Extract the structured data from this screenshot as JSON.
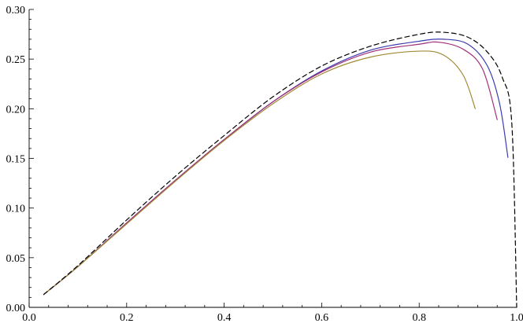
{
  "chart_data": {
    "type": "line",
    "title": "",
    "xlabel": "",
    "ylabel": "",
    "xlim": [
      0,
      1.0
    ],
    "ylim": [
      0,
      0.3
    ],
    "grid": false,
    "x_ticks": [
      0.0,
      0.2,
      0.4,
      0.6,
      0.8,
      1.0
    ],
    "x_tick_labels": [
      "0.0",
      "0.2",
      "0.4",
      "0.6",
      "0.8",
      "1.0"
    ],
    "y_ticks": [
      0.0,
      0.05,
      0.1,
      0.15,
      0.2,
      0.25,
      0.3
    ],
    "y_tick_labels": [
      "0.00",
      "0.05",
      "0.10",
      "0.15",
      "0.20",
      "0.25",
      "0.30"
    ],
    "series": [
      {
        "color": "#000000",
        "dash": "6,4",
        "points": [
          [
            0.03,
            0.013
          ],
          [
            0.1,
            0.042
          ],
          [
            0.2,
            0.088
          ],
          [
            0.3,
            0.132
          ],
          [
            0.4,
            0.173
          ],
          [
            0.5,
            0.212
          ],
          [
            0.6,
            0.243
          ],
          [
            0.7,
            0.263
          ],
          [
            0.8,
            0.275
          ],
          [
            0.85,
            0.277
          ],
          [
            0.9,
            0.272
          ],
          [
            0.94,
            0.257
          ],
          [
            0.97,
            0.232
          ],
          [
            0.99,
            0.185
          ],
          [
            1.0,
            0.0
          ]
        ]
      },
      {
        "color": "#3b3bb0",
        "dash": "",
        "points": [
          [
            0.03,
            0.013
          ],
          [
            0.1,
            0.041
          ],
          [
            0.2,
            0.085
          ],
          [
            0.3,
            0.128
          ],
          [
            0.4,
            0.169
          ],
          [
            0.5,
            0.207
          ],
          [
            0.6,
            0.238
          ],
          [
            0.7,
            0.259
          ],
          [
            0.8,
            0.268
          ],
          [
            0.85,
            0.27
          ],
          [
            0.9,
            0.265
          ],
          [
            0.94,
            0.243
          ],
          [
            0.965,
            0.205
          ],
          [
            0.982,
            0.151
          ]
        ]
      },
      {
        "color": "#a0307a",
        "dash": "",
        "points": [
          [
            0.03,
            0.013
          ],
          [
            0.1,
            0.041
          ],
          [
            0.2,
            0.085
          ],
          [
            0.3,
            0.128
          ],
          [
            0.4,
            0.169
          ],
          [
            0.5,
            0.207
          ],
          [
            0.6,
            0.237
          ],
          [
            0.7,
            0.257
          ],
          [
            0.8,
            0.265
          ],
          [
            0.84,
            0.267
          ],
          [
            0.89,
            0.26
          ],
          [
            0.93,
            0.24
          ],
          [
            0.96,
            0.189
          ]
        ]
      },
      {
        "color": "#a08a35",
        "dash": "",
        "points": [
          [
            0.03,
            0.013
          ],
          [
            0.1,
            0.041
          ],
          [
            0.2,
            0.084
          ],
          [
            0.3,
            0.127
          ],
          [
            0.4,
            0.168
          ],
          [
            0.5,
            0.205
          ],
          [
            0.6,
            0.235
          ],
          [
            0.7,
            0.252
          ],
          [
            0.8,
            0.258
          ],
          [
            0.85,
            0.254
          ],
          [
            0.89,
            0.234
          ],
          [
            0.915,
            0.2
          ]
        ]
      }
    ]
  }
}
